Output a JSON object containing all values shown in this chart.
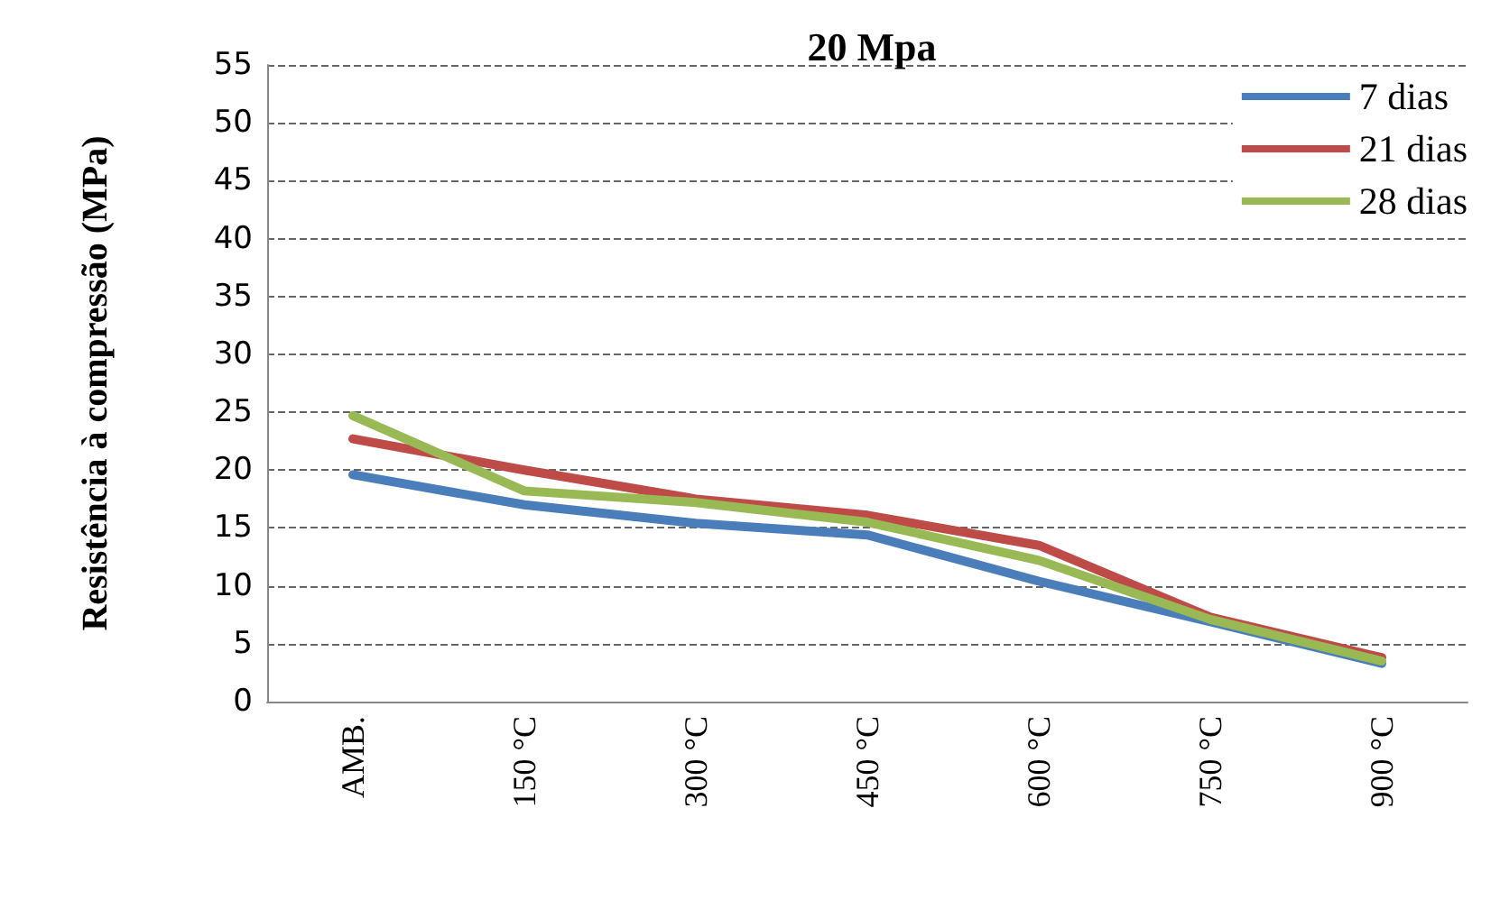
{
  "chart_data": {
    "type": "line",
    "title": "20 Mpa",
    "ylabel": "Resistência à compressão (MPa)",
    "categories": [
      "AMB.",
      "150 °C",
      "300 °C",
      "450 °C",
      "600 °C",
      "750 °C",
      "900 °C"
    ],
    "series": [
      {
        "name": "7 dias",
        "color": "#4a7ebb",
        "values": [
          19.6,
          17.0,
          15.4,
          14.4,
          10.4,
          6.9,
          3.3
        ]
      },
      {
        "name": "21 dias",
        "color": "#be4b48",
        "values": [
          22.7,
          20.0,
          17.5,
          16.1,
          13.5,
          7.3,
          3.8
        ]
      },
      {
        "name": "28 dias",
        "color": "#98b954",
        "values": [
          24.7,
          18.2,
          17.2,
          15.5,
          12.2,
          7.1,
          3.5
        ]
      }
    ],
    "ylim": [
      0,
      55
    ],
    "yticks": [
      0,
      5,
      10,
      15,
      20,
      25,
      30,
      35,
      40,
      45,
      50,
      55
    ],
    "grid": "y",
    "legend": "top right",
    "marker": "none",
    "line_style": "solid"
  }
}
